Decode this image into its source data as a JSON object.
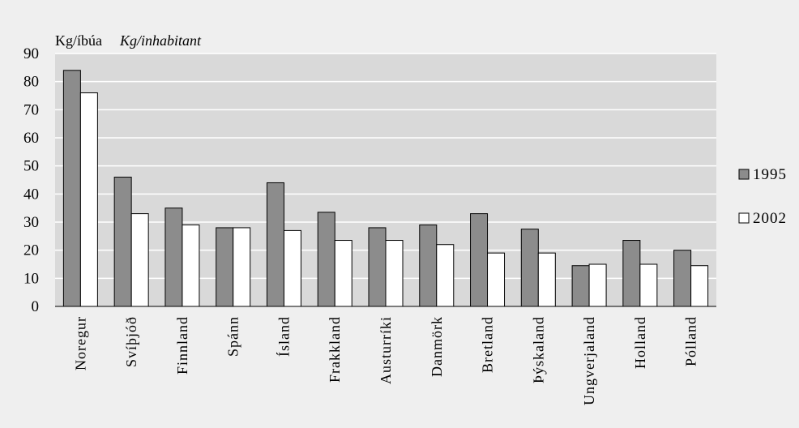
{
  "chart_data": {
    "type": "bar",
    "unit_label": "Kg/íbúa",
    "unit_label_en": "Kg/inhabitant",
    "ylim": [
      0,
      90
    ],
    "yticks": [
      0,
      10,
      20,
      30,
      40,
      50,
      60,
      70,
      80,
      90
    ],
    "grid": true,
    "legend_position": "right",
    "categories": [
      "Noregur",
      "Svíþjóð",
      "Finnland",
      "Spánn",
      "Ísland",
      "Frakkland",
      "Austurríki",
      "Danmörk",
      "Bretland",
      "Þýskaland",
      "Ungverjaland",
      "Holland",
      "Pólland"
    ],
    "series": [
      {
        "name": "1995",
        "color": "#8c8c8c",
        "values": [
          84,
          46,
          35,
          28,
          44,
          33.5,
          28,
          29,
          33,
          27.5,
          14.5,
          23.5,
          20
        ]
      },
      {
        "name": "2002",
        "color": "#ffffff",
        "values": [
          76,
          33,
          29,
          28,
          27,
          23.5,
          23.5,
          22,
          19,
          19,
          15,
          15,
          14.5
        ]
      }
    ]
  }
}
